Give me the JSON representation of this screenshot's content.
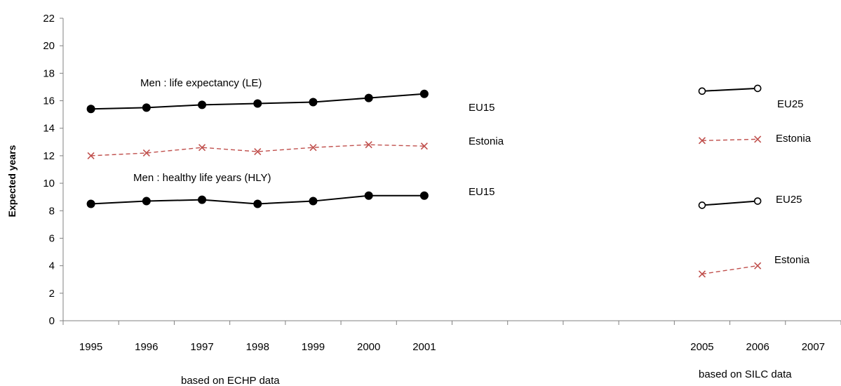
{
  "chart_data": {
    "type": "line",
    "title": "",
    "xlabel": "",
    "ylabel": "Expected years",
    "ylim": [
      0,
      22
    ],
    "y_ticks": [
      "0",
      "2",
      "4",
      "6",
      "8",
      "10",
      "12",
      "14",
      "16",
      "18",
      "20",
      "22"
    ],
    "categories": [
      "1995",
      "1996",
      "1997",
      "1998",
      "1999",
      "2000",
      "2001",
      "",
      "",
      "",
      "",
      "2005",
      "2006",
      "2007"
    ],
    "grid": false,
    "series": [
      {
        "name": "EU15",
        "group": "ECHP",
        "indicator": "LE",
        "style": "solid-filled",
        "color": "#000000",
        "x": [
          "1995",
          "1996",
          "1997",
          "1998",
          "1999",
          "2000",
          "2001"
        ],
        "values": [
          15.4,
          15.5,
          15.7,
          15.8,
          15.9,
          16.2,
          16.5
        ]
      },
      {
        "name": "Estonia",
        "group": "ECHP",
        "indicator": "LE",
        "style": "dashed-cross",
        "color": "#c0504d",
        "x": [
          "1995",
          "1996",
          "1997",
          "1998",
          "1999",
          "2000",
          "2001"
        ],
        "values": [
          12.0,
          12.2,
          12.6,
          12.3,
          12.6,
          12.8,
          12.7
        ]
      },
      {
        "name": "EU15",
        "group": "ECHP",
        "indicator": "HLY",
        "style": "solid-filled",
        "color": "#000000",
        "x": [
          "1995",
          "1996",
          "1997",
          "1998",
          "1999",
          "2000",
          "2001"
        ],
        "values": [
          8.5,
          8.7,
          8.8,
          8.5,
          8.7,
          9.1,
          9.1
        ]
      },
      {
        "name": "EU25",
        "group": "SILC",
        "indicator": "LE",
        "style": "solid-open",
        "color": "#000000",
        "x": [
          "2005",
          "2006"
        ],
        "values": [
          16.7,
          16.9
        ]
      },
      {
        "name": "Estonia",
        "group": "SILC",
        "indicator": "LE",
        "style": "dashed-cross",
        "color": "#c0504d",
        "x": [
          "2005",
          "2006"
        ],
        "values": [
          13.1,
          13.2
        ]
      },
      {
        "name": "EU25",
        "group": "SILC",
        "indicator": "HLY",
        "style": "solid-open",
        "color": "#000000",
        "x": [
          "2005",
          "2006"
        ],
        "values": [
          8.4,
          8.7
        ]
      },
      {
        "name": "Estonia",
        "group": "SILC",
        "indicator": "HLY",
        "style": "dashed-cross",
        "color": "#c0504d",
        "x": [
          "2005",
          "2006"
        ],
        "values": [
          3.4,
          4.0
        ]
      }
    ],
    "annotations": {
      "le_label": "Men : life expectancy (LE)",
      "hly_label": "Men : healthy life years (HLY)",
      "echp_label": "based on ECHP data",
      "silc_label": "based on  SILC data",
      "eu15_le": "EU15",
      "estonia_le_echp": "Estonia",
      "eu15_hly": "EU15",
      "eu25_le": "EU25",
      "estonia_le_silc": "Estonia",
      "eu25_hly": "EU25",
      "estonia_hly_silc": "Estonia"
    }
  }
}
